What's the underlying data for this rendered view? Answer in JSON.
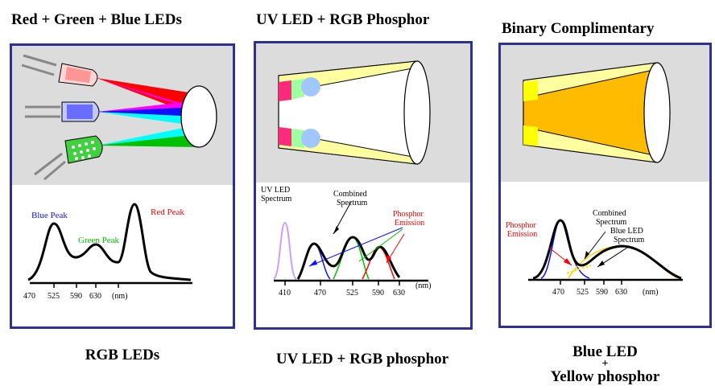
{
  "columns": [
    {
      "heading": "Red + Green + Blue LEDs",
      "caption_lines": [
        "RGB LEDs"
      ],
      "labels": {
        "blue_peak": "Blue Peak",
        "green_peak": "Green Peak",
        "red_peak": "Red Peak"
      },
      "ticks": [
        "470",
        "525",
        "590",
        "630",
        "(nm)"
      ]
    },
    {
      "heading": "UV LED + RGB Phosphor",
      "caption_lines": [
        "UV LED + RGB phosphor"
      ],
      "labels": {
        "uv_spectrum_1": "UV LED",
        "uv_spectrum_2": "Spectrum",
        "combined_1": "Combined",
        "combined_2": "Spectrum",
        "phosphor_1": "Phosphor",
        "phosphor_2": "Emission"
      },
      "ticks": [
        "410",
        "470",
        "525",
        "590",
        "630",
        "(nm)"
      ]
    },
    {
      "heading": "Binary Complimentary",
      "caption_lines": [
        "Blue LED",
        "+",
        "Yellow phosphor"
      ],
      "labels": {
        "phosphor_1": "Phosphor",
        "phosphor_2": "Emission",
        "combined_1": "Combined",
        "combined_2": "Spectrum",
        "blue_led_1": "Blue LED",
        "blue_led_2": "Spectrum"
      },
      "ticks": [
        "470",
        "525",
        "590",
        "630",
        "(nm)"
      ]
    }
  ],
  "colors": {
    "frame": "#2e3192",
    "panel_top_bg": "#dcdcdc",
    "red": "#ff0000",
    "green": "#00c000",
    "blue": "#1010ff",
    "magenta": "#ff00ff",
    "cyan": "#00ffff",
    "uv": "#c8a0ff",
    "pink": "#ff2a7a",
    "light_green": "#a0ffa0",
    "light_blue": "#a0c8ff",
    "pale_yellow": "#ffffa0",
    "orange": "#ffbb00",
    "yellow": "#ffff00"
  }
}
